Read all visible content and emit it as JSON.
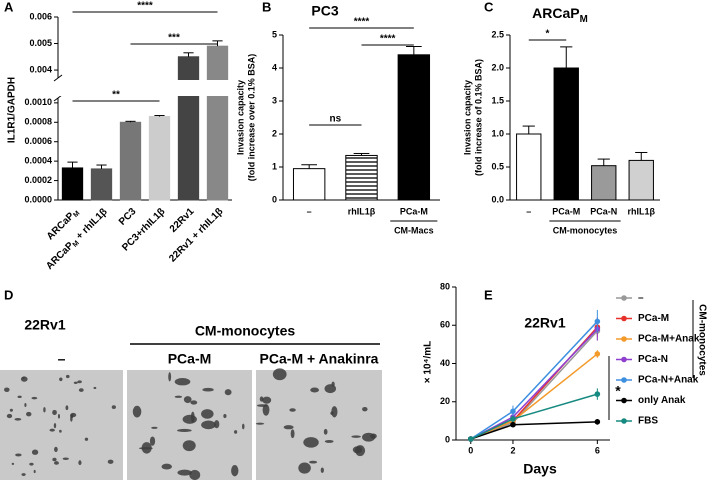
{
  "chart_data": [
    {
      "panel": "A",
      "type": "bar",
      "ylabel": "IL1R1/GAPDH",
      "categories": [
        [
          "ARCaP",
          "M"
        ],
        [
          "ARCaP",
          "M",
          " + rhIL1β"
        ],
        "PC3",
        "PC3+rhIL1β",
        "22Rv1",
        "22Rv1 + rhIL1β"
      ],
      "values": [
        0.00033,
        0.00032,
        0.0008,
        0.00086,
        0.0045,
        0.0049
      ],
      "errors": [
        6e-05,
        4e-05,
        1e-05,
        1e-05,
        0.00015,
        0.0002
      ],
      "colors": [
        "#000000",
        "#555555",
        "#777777",
        "#cccccc",
        "#444444",
        "#888888"
      ],
      "ylim": [
        0,
        0.006
      ],
      "ybreak": [
        0.00105,
        0.0037
      ],
      "yticks": [
        {
          "value": 0,
          "label": "0.0000"
        },
        0.0002,
        0.0004,
        0.0006,
        0.0008,
        {
          "value": 0.001,
          "label": "0.0010"
        },
        0.004,
        0.005,
        0.006
      ],
      "annotations": [
        "****",
        "***",
        "**"
      ]
    },
    {
      "panel": "B",
      "type": "bar",
      "title": "PC3",
      "ylabel_lines": [
        "Invasion capacity",
        "(fold increase over 0.1% BSA)"
      ],
      "categories": [
        "–",
        "rhIL1β",
        "PCa-M"
      ],
      "group": "CM-Macs",
      "values": [
        0.95,
        1.35,
        4.4
      ],
      "errors": [
        0.12,
        0.06,
        0.25
      ],
      "colors": [
        "#ffffff",
        "#ffffff",
        "#000000"
      ],
      "hatch": [
        false,
        true,
        false
      ],
      "ylim": [
        0,
        5
      ],
      "yticks": [
        0,
        1,
        2,
        3,
        4,
        5
      ],
      "annotations": [
        "ns",
        "****",
        "****"
      ]
    },
    {
      "panel": "C",
      "type": "bar",
      "title": [
        "ARCaP",
        "M"
      ],
      "ylabel_lines": [
        "Invasion capacity",
        "(fold increase of 0.1% BSA)"
      ],
      "categories": [
        "–",
        "PCa-M",
        "PCa-N",
        "rhIL1β"
      ],
      "group": "CM-monocytes",
      "values": [
        1.0,
        2.0,
        0.52,
        0.6
      ],
      "errors": [
        0.12,
        0.32,
        0.1,
        0.12
      ],
      "colors": [
        "#ffffff",
        "#000000",
        "#9a9a9a",
        "#d0d0d0"
      ],
      "ylim": [
        0,
        2.5
      ],
      "yticks": [
        {
          "value": 0,
          "label": "0.0"
        },
        0.5,
        {
          "value": 1,
          "label": "1.0"
        },
        1.5,
        {
          "value": 2,
          "label": "2.0"
        },
        2.5
      ],
      "annotations": [
        "*"
      ]
    },
    {
      "panel": "D",
      "type": "image",
      "title": "22Rv1",
      "group": "CM-monocytes",
      "conditions": [
        "–",
        "PCa-M",
        "PCa-M + Anakinra"
      ]
    },
    {
      "panel": "E",
      "type": "line",
      "title": "22Rv1",
      "xlabel": "Days",
      "ylabel": "× 10⁴/mL",
      "x": [
        0,
        2,
        6
      ],
      "xlim": [
        -0.7,
        6.6
      ],
      "xticks": [
        0,
        2,
        6
      ],
      "ylim": [
        0,
        80
      ],
      "yticks": [
        0,
        20,
        40,
        60,
        80
      ],
      "legend_group": "CM-monocytes",
      "annotations": [
        "*"
      ],
      "series": [
        {
          "name": "–",
          "color": "#999999",
          "values": [
            0.5,
            9,
            57
          ],
          "errors": [
            0.5,
            1.5,
            5
          ]
        },
        {
          "name": "PCa-M",
          "color": "#e8302a",
          "values": [
            0.5,
            10,
            59
          ],
          "errors": [
            0.5,
            1.5,
            5
          ]
        },
        {
          "name": "PCa-M+Anak",
          "color": "#f39a2b",
          "values": [
            0.5,
            10,
            45
          ],
          "errors": [
            0.5,
            1.5,
            2
          ]
        },
        {
          "name": "PCa-N",
          "color": "#8e3fd0",
          "values": [
            0.5,
            12,
            58
          ],
          "errors": [
            0.5,
            2,
            6
          ]
        },
        {
          "name": "PCa-N+Anak",
          "color": "#3d8fe0",
          "values": [
            0.5,
            15,
            62
          ],
          "errors": [
            0.5,
            3,
            6
          ]
        },
        {
          "name": "only Anak",
          "color": "#000000",
          "values": [
            0.5,
            8,
            9.5
          ],
          "errors": [
            0.5,
            1,
            1.5
          ]
        },
        {
          "name": "FBS",
          "color": "#168a80",
          "values": [
            0.5,
            11,
            24
          ],
          "errors": [
            0.5,
            1.5,
            3
          ]
        }
      ]
    }
  ]
}
